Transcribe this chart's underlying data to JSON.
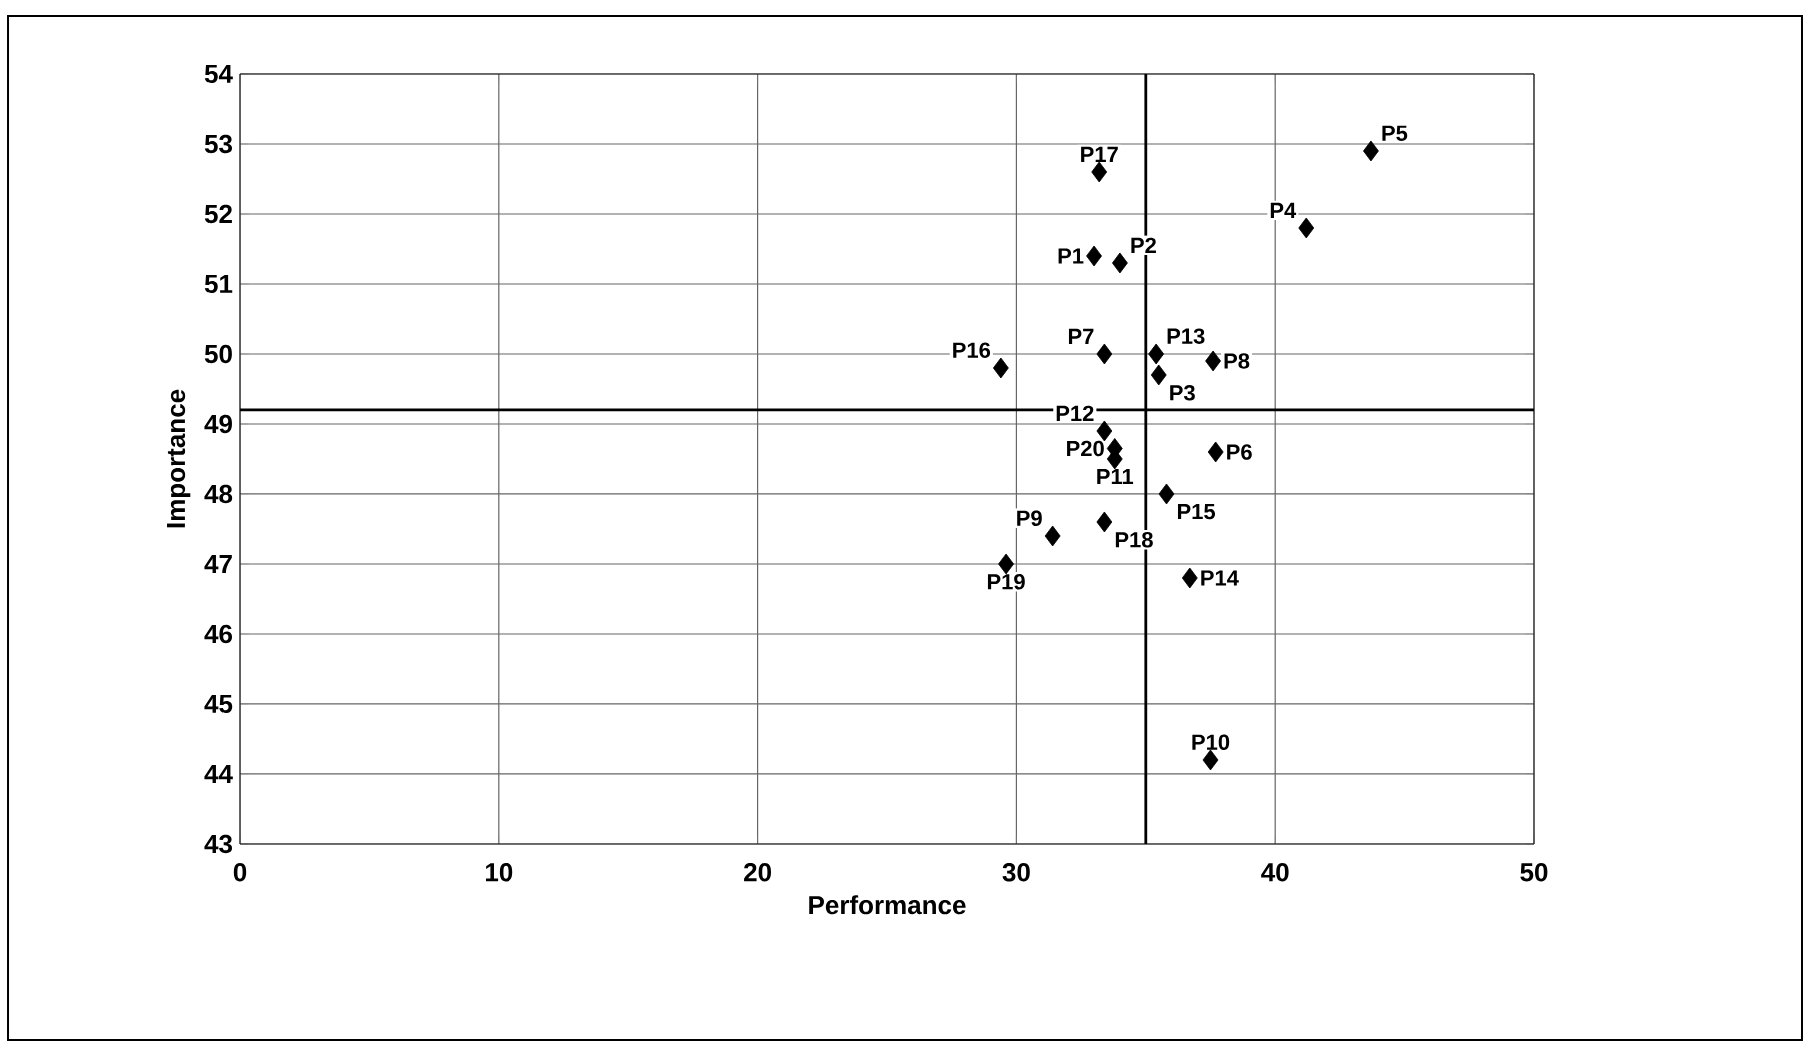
{
  "chart_data": {
    "type": "scatter",
    "xlabel": "Performance",
    "ylabel": "Importance",
    "series": [
      {
        "color": "#000000",
        "x": [
          33.0,
          34.0,
          35.5,
          41.2,
          43.7,
          37.7,
          33.4,
          37.6,
          31.4,
          37.5,
          33.8,
          33.4,
          35.4,
          36.7,
          35.8,
          29.4,
          33.2,
          33.4,
          29.6,
          33.8
        ],
        "values": [
          51.4,
          51.3,
          49.7,
          51.8,
          52.9,
          48.6,
          50.0,
          49.9,
          47.4,
          44.2,
          48.5,
          48.9,
          50.0,
          46.8,
          48.0,
          49.8,
          52.6,
          47.6,
          47.0,
          48.65
        ]
      }
    ],
    "annotations": [
      {
        "text": "P1",
        "x": 33.0,
        "y": 51.4
      },
      {
        "text": "P2",
        "x": 34.0,
        "y": 51.3
      },
      {
        "text": "P3",
        "x": 35.5,
        "y": 49.7
      },
      {
        "text": "P4",
        "x": 41.2,
        "y": 51.8
      },
      {
        "text": "P5",
        "x": 43.7,
        "y": 52.9
      },
      {
        "text": "P6",
        "x": 37.7,
        "y": 48.6
      },
      {
        "text": "P7",
        "x": 33.4,
        "y": 50.0
      },
      {
        "text": "P8",
        "x": 37.6,
        "y": 49.9
      },
      {
        "text": "P9",
        "x": 31.4,
        "y": 47.4
      },
      {
        "text": "P10",
        "x": 37.5,
        "y": 44.2
      },
      {
        "text": "P11",
        "x": 33.8,
        "y": 48.5
      },
      {
        "text": "P12",
        "x": 33.4,
        "y": 48.9
      },
      {
        "text": "P13",
        "x": 35.4,
        "y": 50.0
      },
      {
        "text": "P14",
        "x": 36.7,
        "y": 46.8
      },
      {
        "text": "P15",
        "x": 35.8,
        "y": 48.0
      },
      {
        "text": "P16",
        "x": 29.4,
        "y": 49.8
      },
      {
        "text": "P17",
        "x": 33.2,
        "y": 52.6
      },
      {
        "text": "P18",
        "x": 33.4,
        "y": 47.6
      },
      {
        "text": "P19",
        "x": 29.6,
        "y": 47.0
      },
      {
        "text": "P20",
        "x": 33.8,
        "y": 48.65
      }
    ],
    "ref_lines": [
      {
        "axis": "x",
        "value": 35
      },
      {
        "axis": "y",
        "value": 49.2
      }
    ],
    "xlim": [
      0,
      50
    ],
    "ylim": [
      43,
      54
    ],
    "xticks": [
      0,
      10,
      20,
      30,
      40,
      50
    ],
    "yticks": [
      43,
      44,
      45,
      46,
      47,
      48,
      49,
      50,
      51,
      52,
      53,
      54
    ],
    "grid": true,
    "marker": "diamond"
  }
}
